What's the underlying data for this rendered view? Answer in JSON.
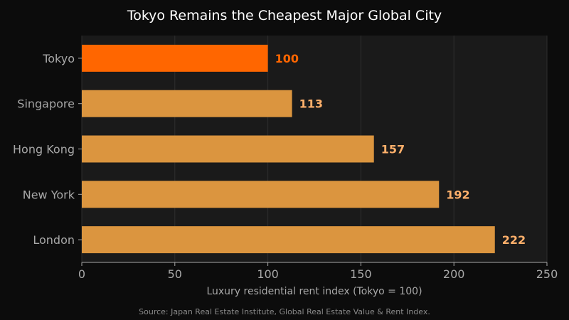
{
  "chart_data": {
    "type": "bar",
    "orientation": "horizontal",
    "title": "Tokyo Remains the Cheapest Major Global City",
    "xlabel": "Luxury residential rent index (Tokyo = 100)",
    "ylabel": "",
    "categories": [
      "Tokyo",
      "Singapore",
      "Hong Kong",
      "New York",
      "London"
    ],
    "values": [
      100,
      113,
      157,
      192,
      222
    ],
    "xlim": [
      0,
      250
    ],
    "xticks": [
      "0",
      "50",
      "100",
      "150",
      "200",
      "250"
    ],
    "grid": "vertical",
    "highlight_category": "Tokyo",
    "colors": {
      "highlight_bar": "#ff6600",
      "bar": "#db953f",
      "highlight_label": "#ff6600",
      "label": "#ffb06b",
      "plot_background": "#1a1a1a",
      "figure_background": "#0c0c0c",
      "tick_text": "#a8a8a8"
    }
  },
  "source": "Source: Japan Real Estate Institute, Global Real Estate Value & Rent Index."
}
